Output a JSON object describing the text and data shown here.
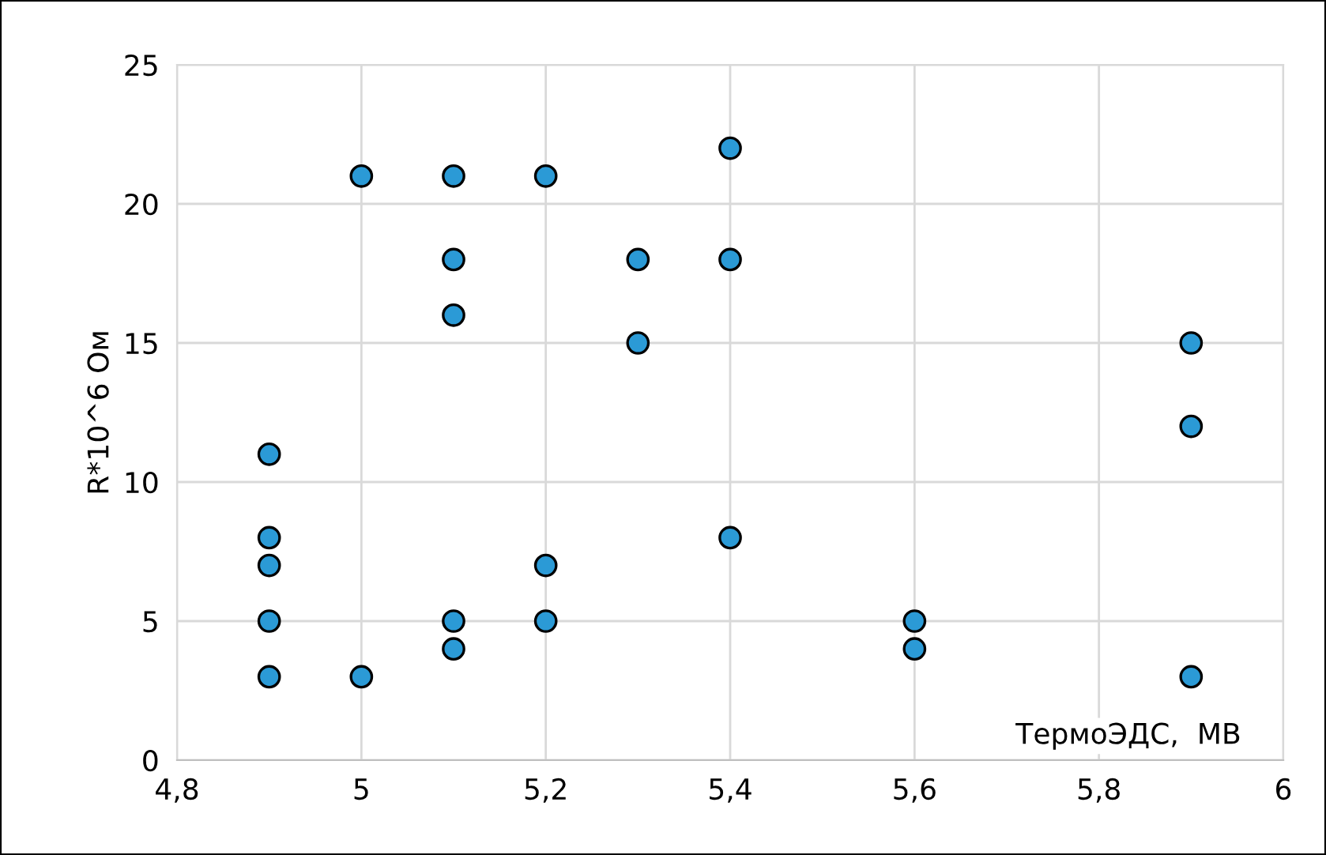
{
  "chart_data": {
    "type": "scatter",
    "xlabel": "ТермоЭДС,  МВ",
    "ylabel": "R*10^6 Ом",
    "x": [
      4.9,
      4.9,
      4.9,
      4.9,
      4.9,
      5.0,
      5.0,
      5.1,
      5.1,
      5.1,
      5.1,
      5.1,
      5.2,
      5.2,
      5.2,
      5.3,
      5.3,
      5.4,
      5.4,
      5.4,
      5.6,
      5.6,
      5.9,
      5.9,
      5.9
    ],
    "series": [
      {
        "color": "#2b9ad6",
        "values": [
          11,
          8,
          7,
          5,
          3,
          21,
          3,
          21,
          18,
          16,
          5,
          4,
          21,
          7,
          5,
          18,
          15,
          22,
          18,
          8,
          5,
          4,
          15,
          12,
          3
        ]
      }
    ],
    "xlim": [
      4.8,
      6
    ],
    "xticks": [
      {
        "value": 4.8,
        "label": "4,8"
      },
      5,
      {
        "value": 5.2,
        "label": "5,2"
      },
      {
        "value": 5.4,
        "label": "5,4"
      },
      {
        "value": 5.6,
        "label": "5,6"
      },
      {
        "value": 5.8,
        "label": "5,8"
      },
      6
    ],
    "ylim": [
      0,
      25
    ],
    "yticks": [
      0,
      5,
      10,
      15,
      20,
      25
    ],
    "grid": true,
    "marker": "circle",
    "legend": false
  }
}
